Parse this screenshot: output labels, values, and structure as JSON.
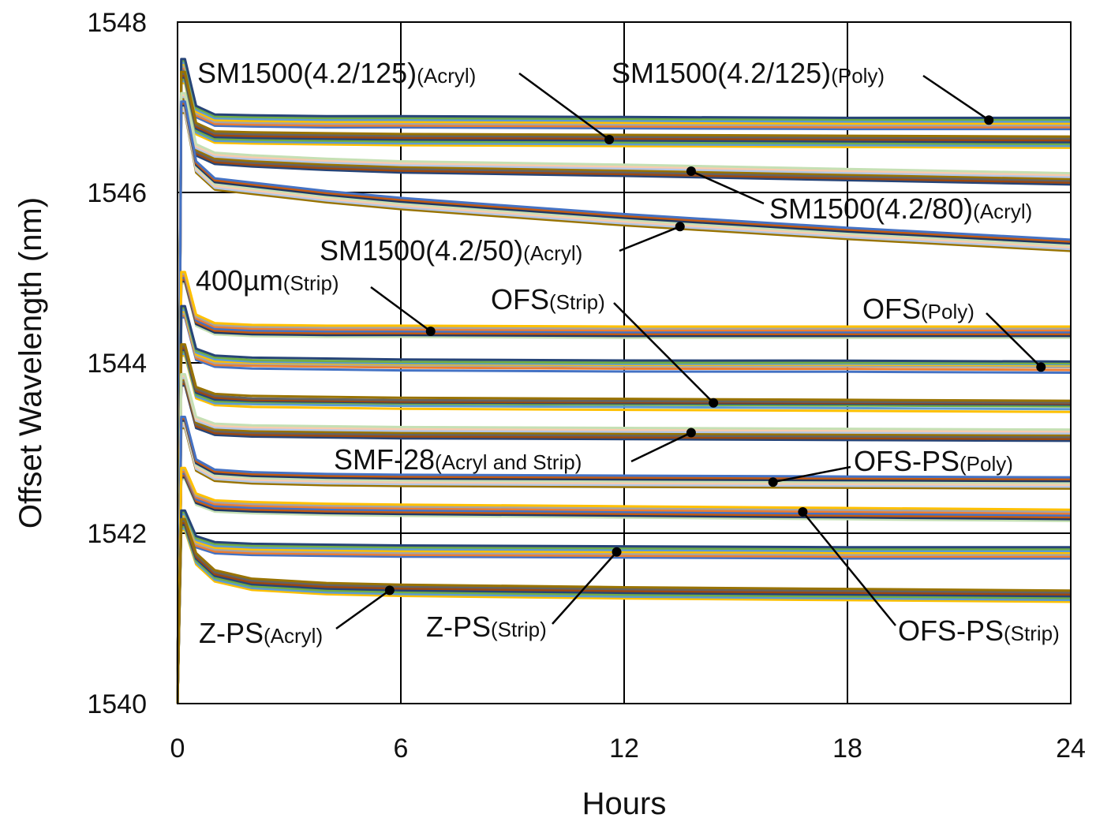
{
  "chart_data": {
    "type": "line",
    "title": "",
    "xlabel": "Hours",
    "ylabel": "Offset Wavelength (nm)",
    "xlim": [
      0,
      24
    ],
    "ylim": [
      1540,
      1548
    ],
    "xticks": [
      0,
      6,
      12,
      18,
      24
    ],
    "yticks": [
      1540,
      1542,
      1544,
      1546,
      1548
    ],
    "grid": true,
    "colors": [
      "#4472c4",
      "#ed7d31",
      "#a5a5a5",
      "#ffc000",
      "#5b9bd5",
      "#70ad47",
      "#264478",
      "#9e480e",
      "#636363",
      "#997300",
      "#b4c7e7",
      "#f8cbad",
      "#c5e0b4",
      "#203864",
      "#c55a11"
    ],
    "series": [
      {
        "name": "SM1500(4.2/125)(Poly)",
        "peak": 1547.5,
        "x": [
          0.2,
          0.5,
          1,
          2,
          4,
          6,
          12,
          18,
          24
        ],
        "values": [
          1547.5,
          1546.95,
          1546.85,
          1546.84,
          1546.83,
          1546.83,
          1546.82,
          1546.81,
          1546.81
        ]
      },
      {
        "name": "SM1500(4.2/125)(Acryl)",
        "peak": 1547.35,
        "x": [
          0.2,
          0.5,
          1,
          2,
          4,
          6,
          12,
          18,
          24
        ],
        "values": [
          1547.35,
          1546.75,
          1546.65,
          1546.64,
          1546.63,
          1546.62,
          1546.61,
          1546.6,
          1546.59
        ]
      },
      {
        "name": "SM1500(4.2/80)(Acryl)",
        "peak": 1547.1,
        "x": [
          0.2,
          0.5,
          1,
          2,
          4,
          6,
          12,
          18,
          24
        ],
        "values": [
          1547.1,
          1546.5,
          1546.4,
          1546.37,
          1546.33,
          1546.3,
          1546.26,
          1546.21,
          1546.16
        ]
      },
      {
        "name": "SM1500(4.2/50)(Acryl)",
        "peak": 1547.0,
        "x": [
          0.2,
          0.5,
          1,
          2,
          4,
          6,
          12,
          18,
          24
        ],
        "values": [
          1547.0,
          1546.3,
          1546.1,
          1546.05,
          1545.95,
          1545.87,
          1545.68,
          1545.52,
          1545.38
        ]
      },
      {
        "name": "400µm(Strip)",
        "peak": 1545.0,
        "x": [
          0.2,
          0.5,
          1,
          2,
          4,
          6,
          12,
          18,
          24
        ],
        "values": [
          1545.0,
          1544.5,
          1544.4,
          1544.38,
          1544.37,
          1544.37,
          1544.36,
          1544.36,
          1544.36
        ]
      },
      {
        "name": "OFS(Poly)",
        "peak": 1544.6,
        "x": [
          0.2,
          0.5,
          1,
          2,
          4,
          6,
          12,
          18,
          24
        ],
        "values": [
          1544.6,
          1544.1,
          1544.02,
          1544.0,
          1543.99,
          1543.98,
          1543.97,
          1543.97,
          1543.96
        ]
      },
      {
        "name": "OFS(Strip)",
        "peak": 1544.15,
        "x": [
          0.2,
          0.5,
          1,
          2,
          4,
          6,
          12,
          18,
          24
        ],
        "values": [
          1544.15,
          1543.65,
          1543.57,
          1543.55,
          1543.54,
          1543.53,
          1543.52,
          1543.51,
          1543.5
        ]
      },
      {
        "name": "SMF-28(Acryl and Strip)",
        "peak": 1543.8,
        "x": [
          0.2,
          0.5,
          1,
          2,
          4,
          6,
          12,
          18,
          24
        ],
        "values": [
          1543.8,
          1543.3,
          1543.22,
          1543.2,
          1543.19,
          1543.18,
          1543.17,
          1543.16,
          1543.15
        ]
      },
      {
        "name": "OFS-PS(Poly)",
        "peak": 1543.3,
        "x": [
          0.2,
          0.5,
          1,
          2,
          4,
          6,
          12,
          18,
          24
        ],
        "values": [
          1543.3,
          1542.8,
          1542.68,
          1542.65,
          1542.63,
          1542.62,
          1542.61,
          1542.6,
          1542.59
        ]
      },
      {
        "name": "OFS-PS(Strip)",
        "peak": 1542.7,
        "x": [
          0.2,
          0.5,
          1,
          2,
          4,
          6,
          12,
          18,
          24
        ],
        "values": [
          1542.7,
          1542.4,
          1542.32,
          1542.3,
          1542.28,
          1542.27,
          1542.25,
          1542.23,
          1542.21
        ]
      },
      {
        "name": "Z-PS(Strip)",
        "peak": 1542.2,
        "x": [
          0.2,
          0.5,
          1,
          2,
          4,
          6,
          12,
          18,
          24
        ],
        "values": [
          1542.2,
          1541.9,
          1541.83,
          1541.81,
          1541.8,
          1541.79,
          1541.78,
          1541.77,
          1541.77
        ]
      },
      {
        "name": "Z-PS(Acryl)",
        "peak": 1542.1,
        "x": [
          0.2,
          0.5,
          1,
          2,
          4,
          6,
          12,
          18,
          24
        ],
        "values": [
          1542.1,
          1541.7,
          1541.5,
          1541.4,
          1541.35,
          1541.33,
          1541.3,
          1541.28,
          1541.26
        ]
      }
    ],
    "annotations": [
      {
        "main": "SM1500(4.2/125)",
        "sub": "(Acryl)",
        "point_x": 11.6,
        "point_y": 1546.62
      },
      {
        "main": "SM1500(4.2/125)",
        "sub": "(Poly)",
        "point_x": 21.8,
        "point_y": 1546.85
      },
      {
        "main": "SM1500(4.2/80)",
        "sub": "(Acryl)",
        "point_x": 13.8,
        "point_y": 1546.25
      },
      {
        "main": "SM1500(4.2/50)",
        "sub": "(Acryl)",
        "point_x": 13.5,
        "point_y": 1545.6
      },
      {
        "main": "400µm",
        "sub": "(Strip)",
        "point_x": 6.8,
        "point_y": 1544.37
      },
      {
        "main": "OFS",
        "sub": "(Strip)",
        "point_x": 14.4,
        "point_y": 1543.53
      },
      {
        "main": "OFS",
        "sub": "(Poly)",
        "point_x": 23.2,
        "point_y": 1543.95
      },
      {
        "main": "SMF-28",
        "sub": "(Acryl and Strip)",
        "point_x": 13.8,
        "point_y": 1543.18
      },
      {
        "main": "OFS-PS",
        "sub": "(Poly)",
        "point_x": 16.0,
        "point_y": 1542.6
      },
      {
        "main": "OFS-PS",
        "sub": "(Strip)",
        "point_x": 16.8,
        "point_y": 1542.25
      },
      {
        "main": "Z-PS",
        "sub": "(Strip)",
        "point_x": 11.8,
        "point_y": 1541.78
      },
      {
        "main": "Z-PS",
        "sub": "(Acryl)",
        "point_x": 5.7,
        "point_y": 1541.33
      }
    ]
  }
}
